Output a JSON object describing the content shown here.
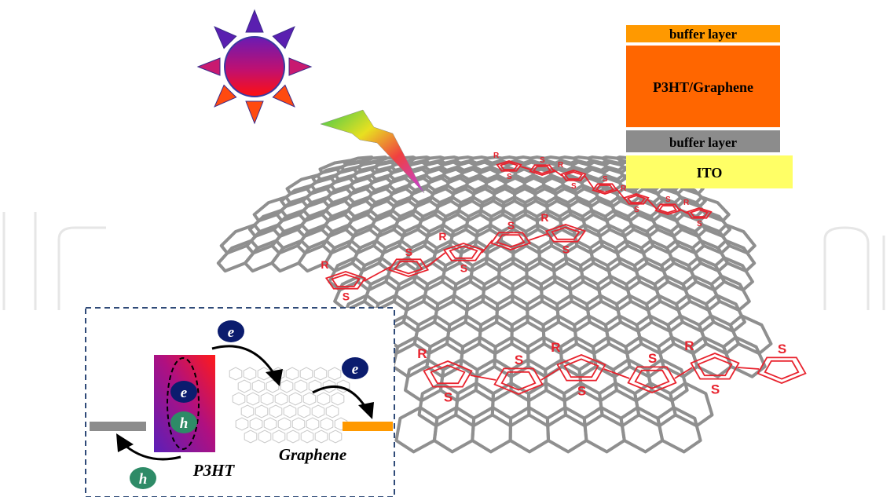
{
  "device_stack": {
    "layers": [
      {
        "label": "buffer layer",
        "color": "#FF9900"
      },
      {
        "label": "P3HT/Graphene",
        "color": "#FF6600"
      },
      {
        "label": "buffer layer",
        "color": "#8C8C8C"
      },
      {
        "label": "ITO",
        "color": "#FFFF66"
      }
    ]
  },
  "molecule": {
    "sulfur_label": "S",
    "side_chain_label": "R"
  },
  "inset": {
    "electron_symbol": "e",
    "hole_symbol": "h",
    "donor_label": "P3HT",
    "acceptor_label": "Graphene",
    "electron_color": "#0B1C6E",
    "hole_color": "#2E8B67"
  },
  "colors": {
    "graphene": "#8F8F8F",
    "polymer": "#E8232E",
    "inset_border": "#2F4A78",
    "watermark": "#E6E6E6"
  }
}
